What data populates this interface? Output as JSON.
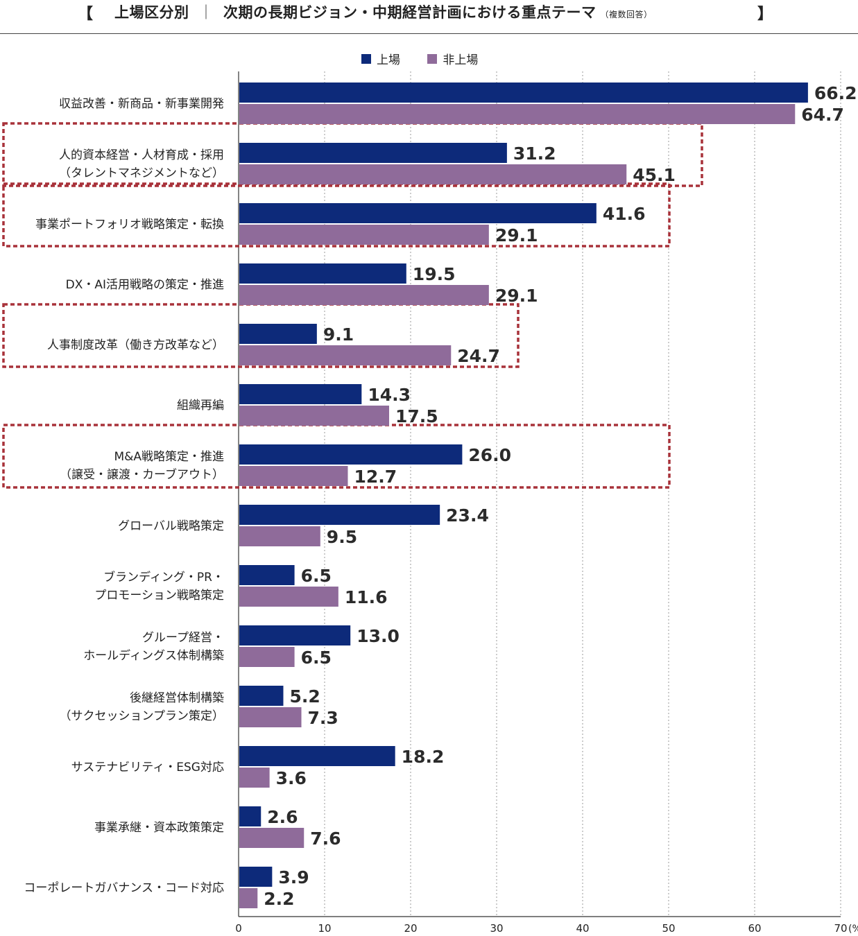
{
  "title": {
    "open_bracket": "【",
    "segment": "上場区分別",
    "separator": "｜",
    "main": "次期の長期ビジョン・中期経営計画における重点テーマ",
    "note": "（複数回答）",
    "close_bracket": "】"
  },
  "chart_data": {
    "type": "bar",
    "orientation": "horizontal",
    "categories": [
      [
        "収益改善・新商品・新事業開発"
      ],
      [
        "人的資本経営・人材育成・採用",
        "（タレントマネジメントなど）"
      ],
      [
        "事業ポートフォリオ戦略策定・転換"
      ],
      [
        "DX・AI活用戦略の策定・推進"
      ],
      [
        "人事制度改革（働き方改革など）"
      ],
      [
        "組織再編"
      ],
      [
        "M&A戦略策定・推進",
        "（譲受・譲渡・カーブアウト）"
      ],
      [
        "グローバル戦略策定"
      ],
      [
        "ブランディング・PR・",
        "プロモーション戦略策定"
      ],
      [
        "グループ経営・",
        "ホールディングス体制構築"
      ],
      [
        "後継経営体制構築",
        "（サクセッションプラン策定）"
      ],
      [
        "サステナビリティ・ESG対応"
      ],
      [
        "事業承継・資本政策策定"
      ],
      [
        "コーポレートガバナンス・コード対応"
      ]
    ],
    "series": [
      {
        "name": "上場",
        "color": "#0d2a7a",
        "values": [
          66.2,
          31.2,
          41.6,
          19.5,
          9.1,
          14.3,
          26.0,
          23.4,
          6.5,
          13.0,
          5.2,
          18.2,
          2.6,
          3.9
        ]
      },
      {
        "name": "非上場",
        "color": "#8f6b9a",
        "values": [
          64.7,
          45.1,
          29.1,
          29.1,
          24.7,
          17.5,
          12.7,
          9.5,
          11.6,
          6.5,
          7.3,
          3.6,
          7.6,
          2.2
        ]
      }
    ],
    "xlim": [
      0,
      70
    ],
    "xticks": [
      "0",
      "10",
      "20",
      "30",
      "40",
      "50",
      "60",
      "70"
    ],
    "xunit": "(%)",
    "highlighted_categories": [
      1,
      2,
      4,
      6
    ],
    "highlight_color": "#a8323a",
    "gridlines": "dotted-vertical",
    "legend_position": "top-center"
  }
}
